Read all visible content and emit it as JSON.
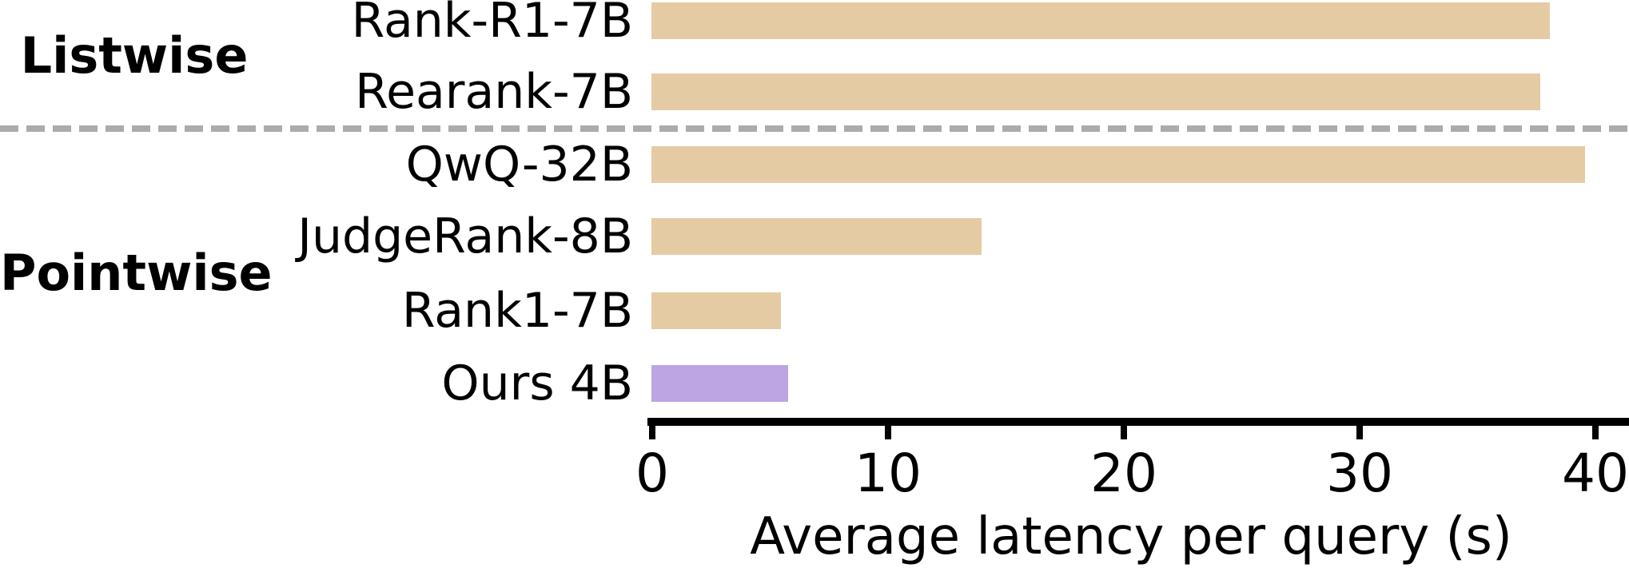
{
  "chart_data": {
    "type": "bar",
    "orientation": "horizontal",
    "title": "",
    "xlabel": "Average latency per query (s)",
    "ylabel": "",
    "xticks": [
      "0",
      "10",
      "20",
      "30",
      "40"
    ],
    "xtick_values": [
      0,
      10,
      20,
      30,
      40
    ],
    "xlim": [
      0,
      41.4
    ],
    "grid": false,
    "legend": "none",
    "groups": [
      {
        "label": "Listwise",
        "items": [
          {
            "model": "Rank-R1-7B",
            "latency_s": 38.1,
            "highlight": false
          },
          {
            "model": "Rearank-7B",
            "latency_s": 37.7,
            "highlight": false
          }
        ]
      },
      {
        "label": "Pointwise",
        "items": [
          {
            "model": "QwQ-32B",
            "latency_s": 39.6,
            "highlight": false
          },
          {
            "model": "JudgeRank-8B",
            "latency_s": 14.0,
            "highlight": false
          },
          {
            "model": "Rank1-7B",
            "latency_s": 5.5,
            "highlight": false
          },
          {
            "model": "Ours 4B",
            "latency_s": 5.8,
            "highlight": true
          }
        ]
      }
    ],
    "colors": {
      "bar_default": "#e5cba4",
      "bar_highlight": "#bda4e2",
      "separator_dash": "#ababab",
      "axis": "#000000",
      "text": "#000000",
      "background": "#ffffff"
    },
    "separator": {
      "style": "dashed",
      "between": [
        "Listwise",
        "Pointwise"
      ]
    }
  }
}
